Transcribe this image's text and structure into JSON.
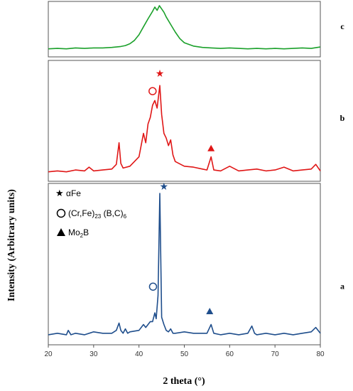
{
  "chart_data": {
    "type": "line",
    "xlabel": "2 theta (°)",
    "ylabel": "Intensity (Arbitrary units)",
    "xlim": [
      20,
      80
    ],
    "x_ticks": [
      "20",
      "30",
      "40",
      "50",
      "60",
      "70",
      "80"
    ],
    "panels": [
      {
        "tag": "c",
        "color": "#1aa02a",
        "ylim": [
          0,
          1
        ],
        "series": [
          {
            "x": [
              20,
              22,
              24,
              26,
              28,
              30,
              32,
              34,
              36,
              37,
              38,
              39,
              40,
              41,
              42,
              43,
              43.5,
              44,
              44.5,
              45,
              45.5,
              46,
              47,
              48,
              49,
              50,
              52,
              54,
              56,
              58,
              60,
              62,
              64,
              66,
              68,
              70,
              72,
              74,
              76,
              78,
              80
            ],
            "y": [
              0.08,
              0.09,
              0.08,
              0.1,
              0.09,
              0.1,
              0.1,
              0.11,
              0.13,
              0.15,
              0.19,
              0.26,
              0.38,
              0.55,
              0.72,
              0.88,
              0.97,
              0.9,
              1.0,
              0.93,
              0.86,
              0.76,
              0.6,
              0.44,
              0.3,
              0.21,
              0.14,
              0.11,
              0.1,
              0.09,
              0.1,
              0.09,
              0.08,
              0.09,
              0.08,
              0.09,
              0.08,
              0.09,
              0.1,
              0.09,
              0.12
            ]
          }
        ]
      },
      {
        "tag": "b",
        "color": "#e01616",
        "ylim": [
          0,
          1
        ],
        "series": [
          {
            "x": [
              20,
              22,
              24,
              26,
              28,
              29,
              30,
              32,
              34,
              35,
              35.6,
              36,
              36.5,
              38,
              40,
              41,
              41.5,
              42,
              42.5,
              43,
              43.5,
              44,
              44.6,
              45,
              45.5,
              46,
              46.5,
              47,
              47.5,
              48,
              50,
              52,
              54,
              55,
              55.9,
              56.5,
              58,
              60,
              62,
              64,
              66,
              68,
              70,
              72,
              74,
              76,
              78,
              79,
              80
            ],
            "y": [
              0.04,
              0.05,
              0.04,
              0.06,
              0.05,
              0.09,
              0.05,
              0.06,
              0.07,
              0.12,
              0.35,
              0.13,
              0.08,
              0.1,
              0.2,
              0.45,
              0.35,
              0.55,
              0.62,
              0.75,
              0.8,
              0.72,
              0.96,
              0.65,
              0.45,
              0.4,
              0.32,
              0.38,
              0.22,
              0.15,
              0.1,
              0.09,
              0.07,
              0.06,
              0.2,
              0.06,
              0.05,
              0.1,
              0.05,
              0.06,
              0.07,
              0.05,
              0.06,
              0.09,
              0.05,
              0.06,
              0.07,
              0.12,
              0.05
            ]
          }
        ]
      },
      {
        "tag": "a",
        "color": "#1f4e8c",
        "ylim": [
          0,
          1
        ],
        "series": [
          {
            "x": [
              20,
              22,
              24,
              24.4,
              25,
              26,
              28,
              30,
              32,
              34,
              35,
              35.6,
              36,
              36.5,
              37,
              37.5,
              38,
              40,
              41,
              41.5,
              42,
              42.5,
              43,
              43.5,
              43.8,
              44.2,
              44.6,
              45,
              45.5,
              46,
              46.5,
              47,
              47.5,
              48,
              50,
              52,
              54,
              55,
              55.9,
              56.5,
              58,
              60,
              62,
              64,
              64.9,
              65.5,
              66,
              68,
              70,
              72,
              74,
              76,
              78,
              79,
              80
            ],
            "y": [
              0.03,
              0.04,
              0.03,
              0.06,
              0.03,
              0.04,
              0.03,
              0.05,
              0.04,
              0.04,
              0.06,
              0.11,
              0.06,
              0.04,
              0.07,
              0.04,
              0.05,
              0.06,
              0.1,
              0.08,
              0.1,
              0.12,
              0.12,
              0.18,
              0.14,
              0.3,
              1.0,
              0.15,
              0.1,
              0.06,
              0.05,
              0.07,
              0.04,
              0.04,
              0.05,
              0.04,
              0.04,
              0.04,
              0.1,
              0.04,
              0.03,
              0.04,
              0.03,
              0.04,
              0.09,
              0.04,
              0.03,
              0.04,
              0.03,
              0.04,
              0.03,
              0.04,
              0.05,
              0.08,
              0.04
            ]
          }
        ]
      }
    ],
    "markers": [
      {
        "panel": "b",
        "shape": "star",
        "x": 44.6,
        "y": 1.09,
        "color": "#e01616"
      },
      {
        "panel": "b",
        "shape": "circle",
        "x": 43.0,
        "y": 0.9,
        "color": "#e01616"
      },
      {
        "panel": "b",
        "shape": "triangle",
        "x": 55.9,
        "y": 0.29,
        "color": "#e01616"
      },
      {
        "panel": "a",
        "shape": "star",
        "x": 45.5,
        "y": 1.05,
        "color": "#1f4e8c"
      },
      {
        "panel": "a",
        "shape": "circle",
        "x": 43.1,
        "y": 0.36,
        "color": "#1f4e8c"
      },
      {
        "panel": "a",
        "shape": "triangle",
        "x": 55.6,
        "y": 0.19,
        "color": "#1f4e8c"
      }
    ],
    "legend": {
      "placement": "top-left of panel a",
      "entries": [
        {
          "symbol": "star-icon",
          "label": "αFe"
        },
        {
          "symbol": "open-circle-icon",
          "label": "(Cr,Fe)",
          "sub1": "23",
          "mid": " (B,C)",
          "sub2": "6"
        },
        {
          "symbol": "triangle-icon",
          "label": "Mo",
          "sub1": "2",
          "mid": "B"
        }
      ]
    }
  }
}
